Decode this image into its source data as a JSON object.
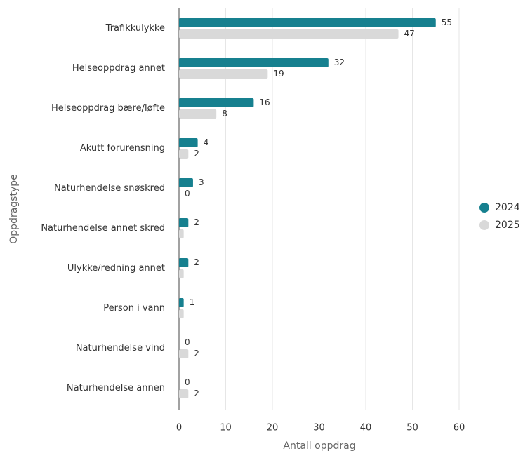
{
  "chart_data": {
    "type": "bar",
    "orientation": "horizontal",
    "x_label": "Antall oppdrag",
    "y_label": "Oppdragstype",
    "categories": [
      "Trafikkulykke",
      "Helseoppdrag annet",
      "Helseoppdrag bære/løfte",
      "Akutt forurensning",
      "Naturhendelse snøskred",
      "Naturhendelse annet skred",
      "Ulykke/redning annet",
      "Person i vann",
      "Naturhendelse vind",
      "Naturhendelse annen"
    ],
    "series": [
      {
        "name": "2024",
        "color": "#16808f",
        "values": [
          55,
          32,
          16,
          4,
          3,
          2,
          2,
          1,
          0,
          0
        ]
      },
      {
        "name": "2025",
        "color": "#d9d9d9",
        "values": [
          47,
          19,
          8,
          2,
          0,
          1,
          1,
          1,
          2,
          2
        ],
        "value_labels": [
          "47",
          "19",
          "8",
          "2",
          "0",
          null,
          null,
          null,
          "2",
          "2"
        ]
      }
    ],
    "xlim": [
      0,
      60
    ],
    "xticks": [
      0,
      10,
      20,
      30,
      40,
      50,
      60
    ],
    "grid": true,
    "legend": "right"
  }
}
